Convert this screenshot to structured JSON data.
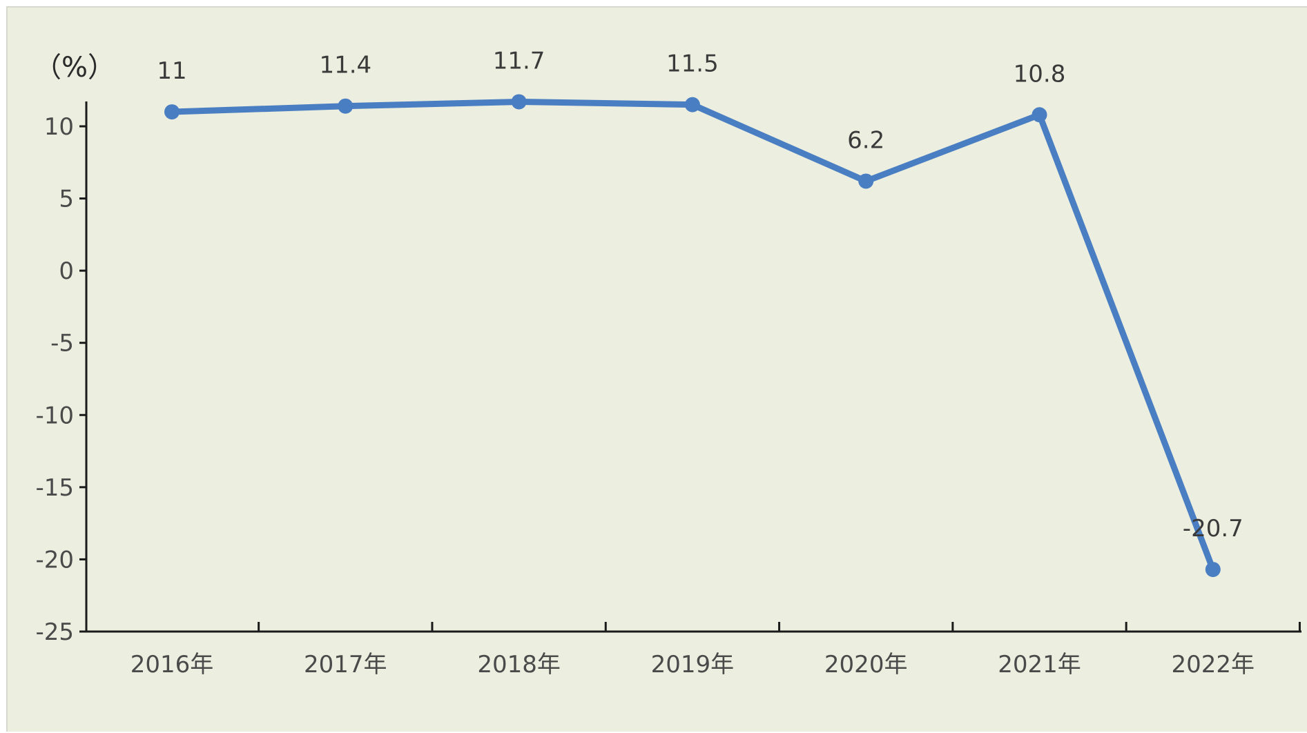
{
  "chart_data": {
    "type": "line",
    "ylabel": "（%）",
    "categories": [
      "2016年",
      "2017年",
      "2018年",
      "2019年",
      "2020年",
      "2021年",
      "2022年"
    ],
    "values": [
      11,
      11.4,
      11.7,
      11.5,
      6.2,
      10.8,
      -20.7
    ],
    "data_labels": [
      "11",
      "11.4",
      "11.7",
      "11.5",
      "6.2",
      "10.8",
      "-20.7"
    ],
    "ylim": [
      -25,
      10
    ],
    "yticks": [
      10,
      5,
      0,
      -5,
      -10,
      -15,
      -20,
      -25
    ],
    "ytick_labels": [
      "10",
      "5",
      "0",
      "-5",
      "-10",
      "-15",
      "-20",
      "-25"
    ],
    "grid": false,
    "legend": "none",
    "colors": {
      "line": "#4a7ec2",
      "background": "#eceedf"
    }
  }
}
